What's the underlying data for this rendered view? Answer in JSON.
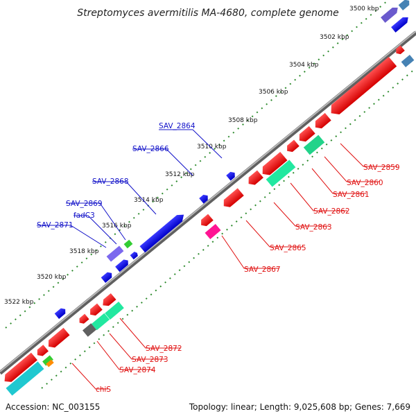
{
  "title": "Streptomyces avermitilis MA-4680, complete genome",
  "footer": {
    "accession": "Accession: NC_003155",
    "summary": "Topology: linear; Length: 9,025,608 bp; Genes: 7,669"
  },
  "colors": {
    "backbone": "#8a8a8a",
    "tick_dots": "#2e8b2e",
    "label_top": "#1010c8",
    "label_bottom": "#e01010"
  },
  "kbp_labels": [
    "3500 kbp",
    "3502 kbp",
    "3504 kbp",
    "3506 kbp",
    "3508 kbp",
    "3510 kbp",
    "3512 kbp",
    "3514 kbp",
    "3516 kbp",
    "3518 kbp",
    "3520 kbp",
    "3522 kbp"
  ],
  "top_gene_labels": [
    "SAV_2864",
    "SAV_2866",
    "SAV_2868",
    "SAV_2869",
    "fadC3",
    "SAV_2871"
  ],
  "bottom_gene_labels": [
    "SAV_2859",
    "SAV_2860",
    "SAV_2861",
    "SAV_2862",
    "SAV_2863",
    "SAV_2865",
    "SAV_2867",
    "SAV_2872",
    "SAV_2873",
    "SAV_2874",
    "chiS"
  ]
}
